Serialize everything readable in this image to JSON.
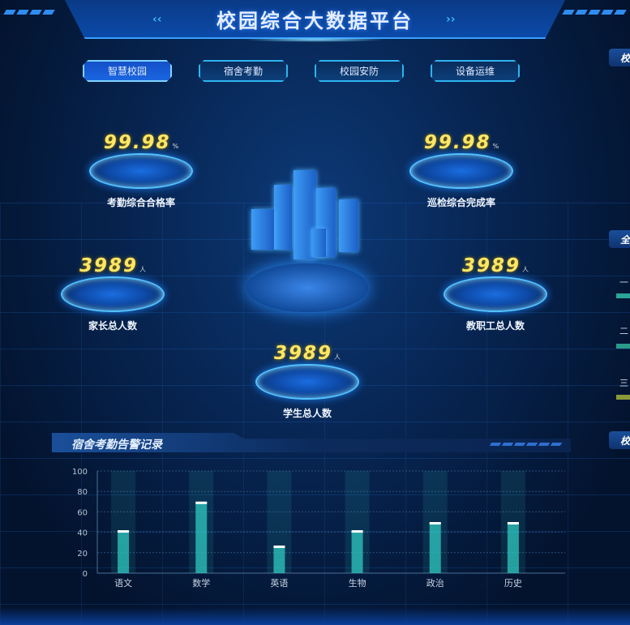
{
  "header": {
    "title": "校园综合大数据平台"
  },
  "tabs": [
    {
      "label": "智慧校园",
      "active": true
    },
    {
      "label": "宿舍考勤"
    },
    {
      "label": "校园安防"
    },
    {
      "label": "设备运维"
    }
  ],
  "kpis": {
    "attendance_rate": {
      "value": "99.98",
      "unit": "%",
      "label": "考勤综合合格率"
    },
    "patrol_rate": {
      "value": "99.98",
      "unit": "%",
      "label": "巡检综合完成率"
    },
    "parents": {
      "value": "3989",
      "unit": "人",
      "label": "家长总人数"
    },
    "staff": {
      "value": "3989",
      "unit": "人",
      "label": "教职工总人数"
    },
    "students": {
      "value": "3989",
      "unit": "人",
      "label": "学生总人数"
    }
  },
  "right_panel": {
    "headers": [
      "校",
      "全",
      "校"
    ],
    "rows": [
      "一",
      "二",
      "三"
    ],
    "row_colors": [
      "#2aa59a",
      "#2a9a8a",
      "#8a9a3a"
    ]
  },
  "alarm_panel": {
    "title": "宿舍考勤告警记录"
  },
  "chart_data": {
    "type": "bar",
    "categories": [
      "语文",
      "数学",
      "英语",
      "生物",
      "政治",
      "历史"
    ],
    "values": [
      42,
      70,
      27,
      42,
      50,
      50
    ],
    "ylim": [
      0,
      100
    ],
    "yticks": [
      0,
      20,
      40,
      60,
      80,
      100
    ],
    "grid": true,
    "bar_color": "#2fc8c0"
  }
}
